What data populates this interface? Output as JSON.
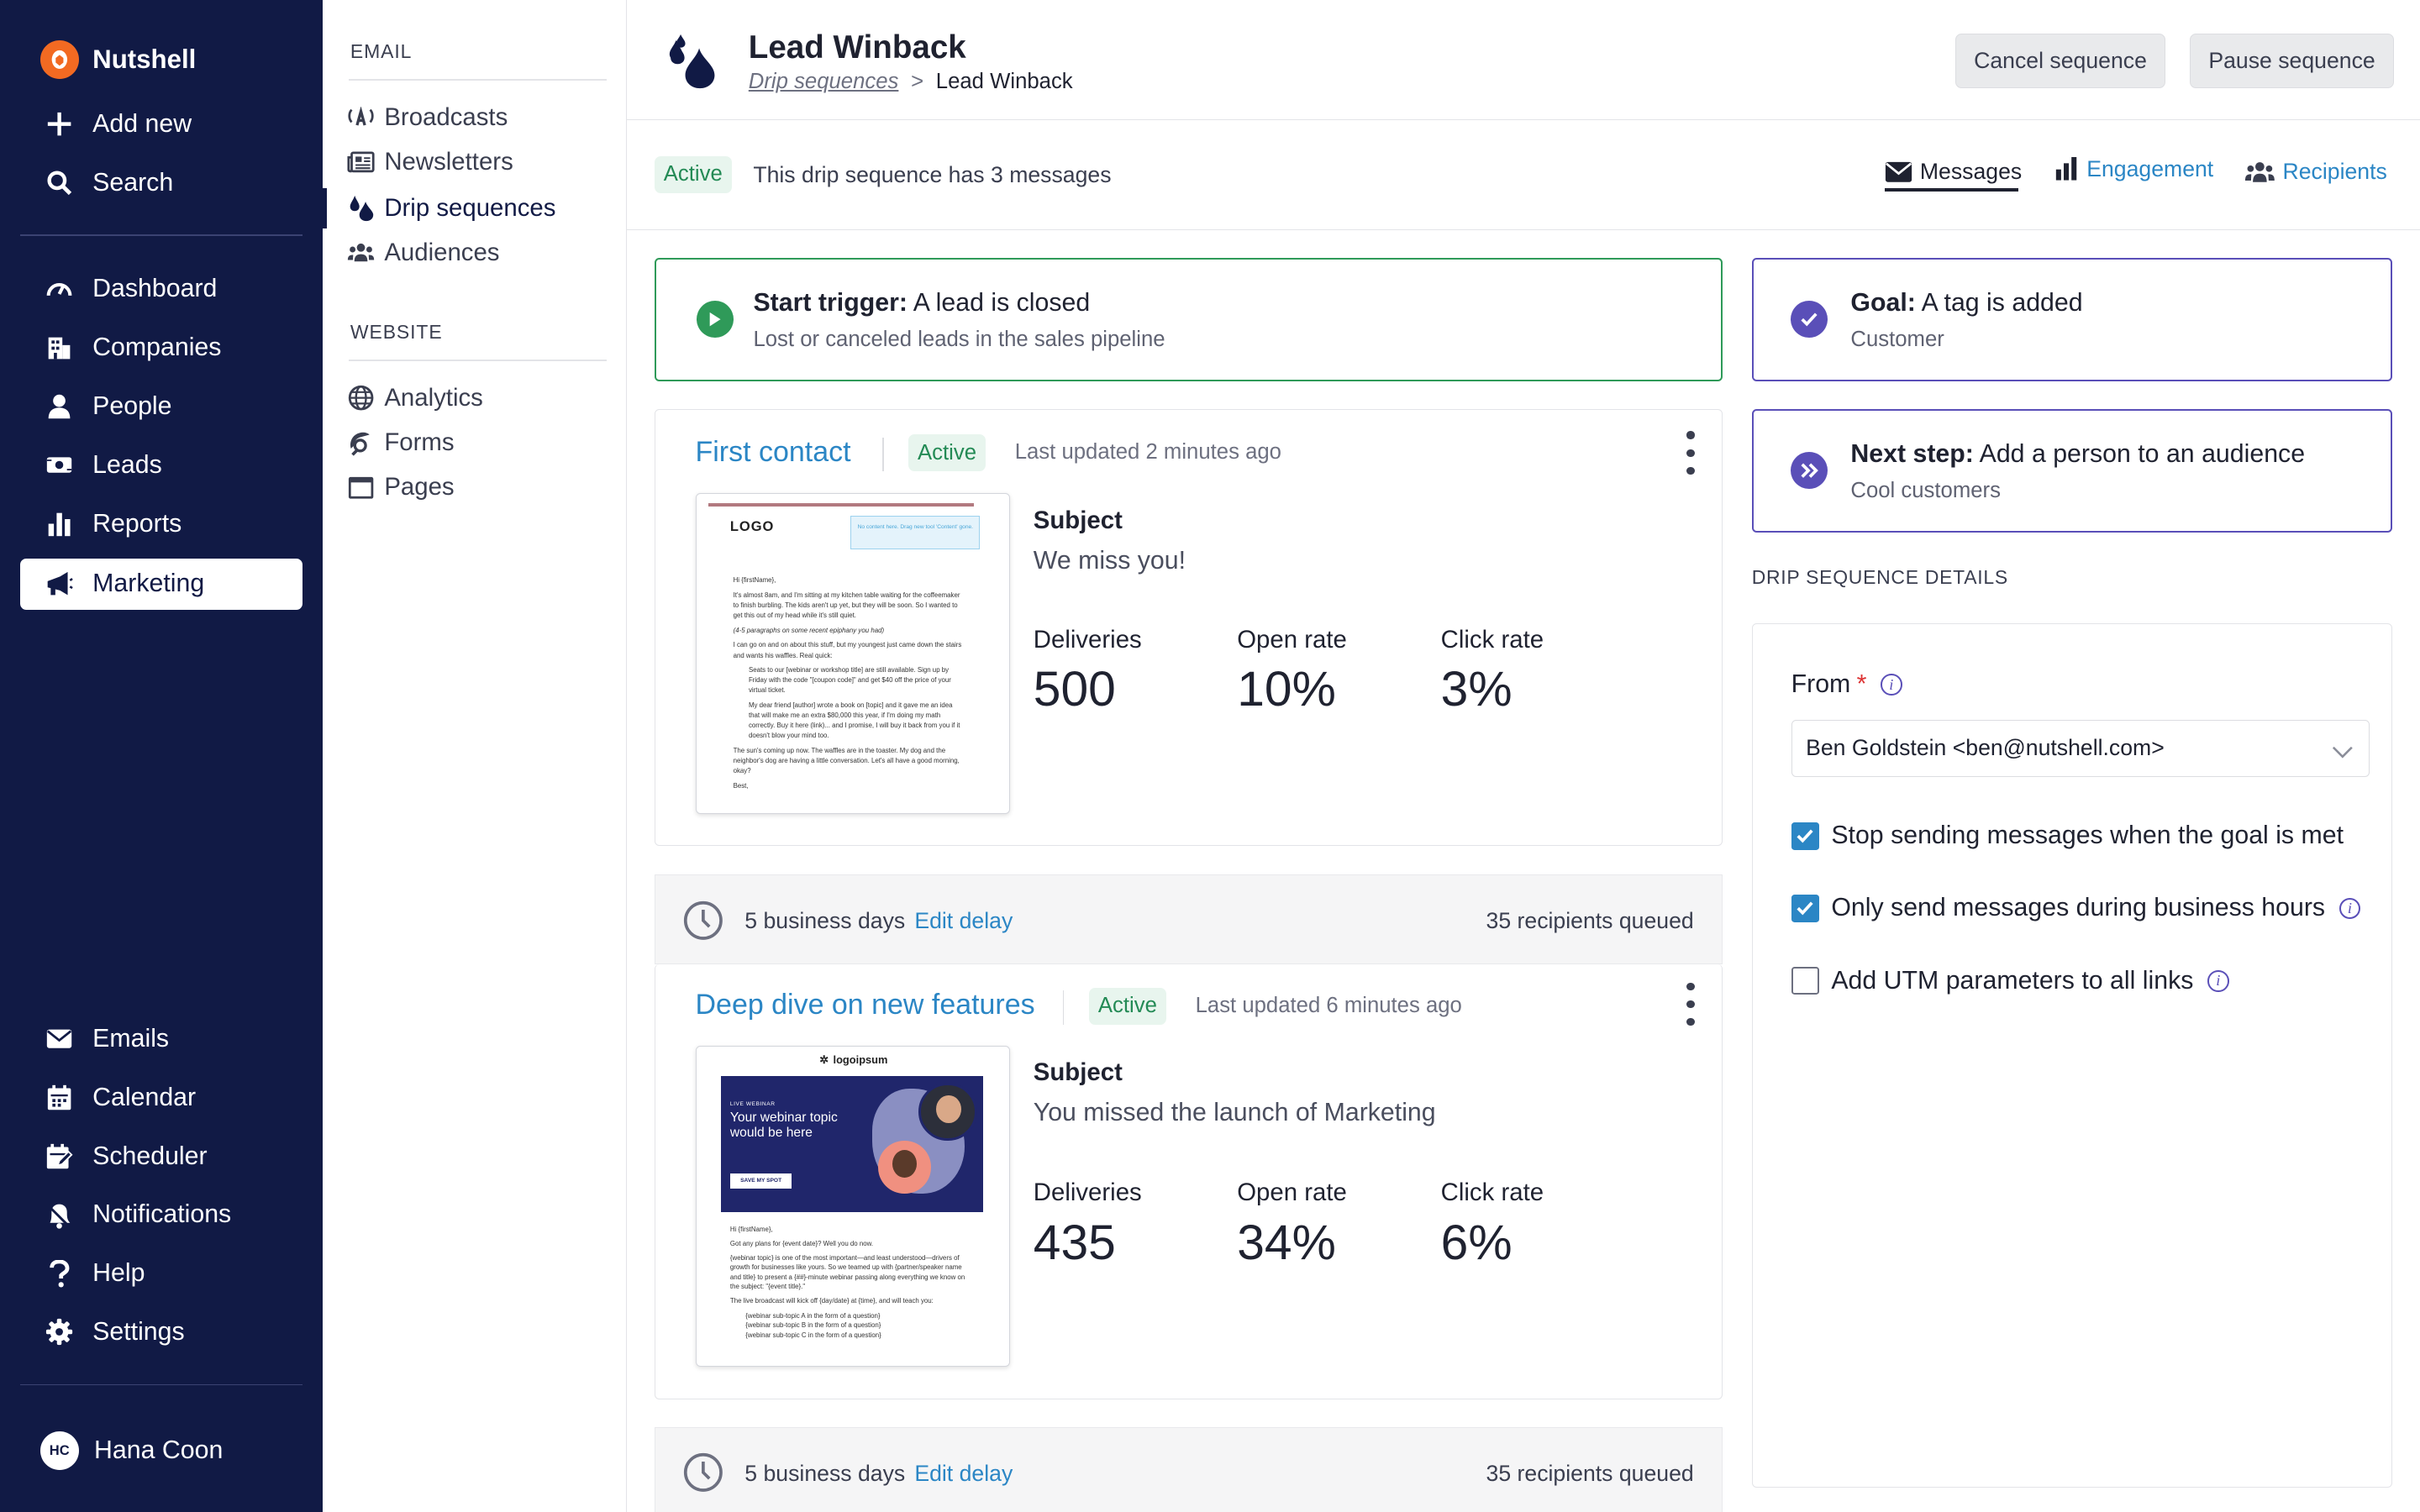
{
  "app": {
    "name": "Nutshell",
    "user_initials": "HC",
    "user_name": "Hana Coon"
  },
  "sidebar": {
    "top_items": [
      {
        "label": "Add new",
        "icon": "plus-icon"
      },
      {
        "label": "Search",
        "icon": "search-icon"
      }
    ],
    "main_items": [
      {
        "label": "Dashboard",
        "icon": "gauge-icon"
      },
      {
        "label": "Companies",
        "icon": "building-icon"
      },
      {
        "label": "People",
        "icon": "person-icon"
      },
      {
        "label": "Leads",
        "icon": "money-icon"
      },
      {
        "label": "Reports",
        "icon": "bar-chart-icon"
      },
      {
        "label": "Marketing",
        "icon": "megaphone-icon",
        "active": true
      }
    ],
    "bottom_items": [
      {
        "label": "Emails",
        "icon": "envelope-icon"
      },
      {
        "label": "Calendar",
        "icon": "calendar-icon"
      },
      {
        "label": "Scheduler",
        "icon": "calendar-edit-icon"
      },
      {
        "label": "Notifications",
        "icon": "bell-icon"
      },
      {
        "label": "Help",
        "icon": "question-icon"
      },
      {
        "label": "Settings",
        "icon": "gear-icon"
      }
    ]
  },
  "subnav": {
    "email_heading": "EMAIL",
    "email_items": [
      {
        "label": "Broadcasts",
        "icon": "broadcast-icon"
      },
      {
        "label": "Newsletters",
        "icon": "newspaper-icon"
      },
      {
        "label": "Drip sequences",
        "icon": "droplets-icon",
        "active": true
      },
      {
        "label": "Audiences",
        "icon": "users-icon"
      }
    ],
    "website_heading": "WEBSITE",
    "website_items": [
      {
        "label": "Analytics",
        "icon": "globe-icon"
      },
      {
        "label": "Forms",
        "icon": "form-icon"
      },
      {
        "label": "Pages",
        "icon": "browser-icon"
      }
    ]
  },
  "header": {
    "title": "Lead Winback",
    "breadcrumb_parent": "Drip sequences",
    "breadcrumb_sep": ">",
    "breadcrumb_current": "Lead Winback",
    "cancel_label": "Cancel sequence",
    "pause_label": "Pause sequence"
  },
  "status": {
    "badge": "Active",
    "text": "This drip sequence has 3 messages",
    "tabs": [
      {
        "label": "Messages",
        "icon": "envelope-icon",
        "active": true
      },
      {
        "label": "Engagement",
        "icon": "bar-chart-icon"
      },
      {
        "label": "Recipients",
        "icon": "users-icon"
      }
    ]
  },
  "trigger": {
    "title_bold": "Start trigger:",
    "title_rest": " A lead is closed",
    "subtitle": "Lost or canceled leads in the sales pipeline"
  },
  "goal": {
    "title_bold": "Goal:",
    "title_rest": " A tag is added",
    "subtitle": "Customer"
  },
  "next_step": {
    "title_bold": "Next step:",
    "title_rest": " Add a person to an audience",
    "subtitle": "Cool customers"
  },
  "messages": [
    {
      "title": "First contact",
      "status": "Active",
      "updated": "Last updated 2 minutes ago",
      "subject_label": "Subject",
      "subject": "We miss you!",
      "deliveries_label": "Deliveries",
      "deliveries": "500",
      "open_rate_label": "Open rate",
      "open_rate": "10%",
      "click_rate_label": "Click rate",
      "click_rate": "3%",
      "preview": {
        "logo": "LOGO",
        "banner": "No content here. Drag new tool 'Content' gone.",
        "greeting": "Hi {firstName},",
        "body1": "It's almost 8am, and I'm sitting at my kitchen table waiting for the coffeemaker to finish burbling. The kids aren't up yet, but they will be soon. So I wanted to get this out of my head while it's still quiet.",
        "body2": "(4-5 paragraphs on some recent epiphany you had)",
        "body3": "I can go on and on about this stuff, but my youngest just came down the stairs and wants his waffles. Real quick:",
        "bullet1": "Seats to our [webinar or workshop title] are still available. Sign up by Friday with the code \"[coupon code]\" and get $40 off the price of your virtual ticket.",
        "bullet2": "My dear friend [author] wrote a book on [topic] and it gave me an idea that will make me an extra $80,000 this year, if I'm doing my math correctly. Buy it here (link)... and I promise, I will buy it back from you if it doesn't blow your mind too.",
        "body4": "The sun's coming up now. The waffles are in the toaster. My dog and the neighbor's dog are having a little conversation. Let's all have a good morning, okay?",
        "signoff": "Best,"
      }
    },
    {
      "title": "Deep dive on new features",
      "status": "Active",
      "updated": "Last updated 6 minutes ago",
      "subject_label": "Subject",
      "subject": "You missed the launch of Marketing",
      "deliveries_label": "Deliveries",
      "deliveries": "435",
      "open_rate_label": "Open rate",
      "open_rate": "34%",
      "click_rate_label": "Click rate",
      "click_rate": "6%",
      "preview": {
        "logo": "logoipsum",
        "eyebrow": "LIVE WEBINAR",
        "headline": "Your webinar topic would be here",
        "cta": "SAVE MY SPOT",
        "greeting": "Hi {firstName},",
        "line1": "Got any plans for {event date}? Well you do now.",
        "line2": "{webinar topic} is one of the most important—and least understood—drivers of growth for businesses like yours. So we teamed up with {partner/speaker name and title} to present a {##}-minute webinar passing along everything we know on the subject: \"{event title}.\"",
        "line3": "The live broadcast will kick off {day/date} at {time}, and will teach you:",
        "bullets": [
          "{webinar sub-topic A in the form of a question}",
          "{webinar sub-topic B in the form of a question}",
          "{webinar sub-topic C in the form of a question}"
        ]
      }
    }
  ],
  "delays": [
    {
      "days": "5 business days",
      "edit": "Edit delay",
      "queued": "35 recipients queued"
    },
    {
      "days": "5 business days",
      "edit": "Edit delay",
      "queued": "35 recipients queued"
    }
  ],
  "details": {
    "heading": "DRIP SEQUENCE  DETAILS",
    "from_label": "From",
    "required_mark": "*",
    "from_value": "Ben Goldstein <ben@nutshell.com>",
    "options": [
      {
        "label": "Stop sending messages when the goal is met",
        "checked": true
      },
      {
        "label": "Only send messages during business hours",
        "checked": true
      },
      {
        "label": "Add UTM parameters to all links",
        "checked": false
      }
    ]
  },
  "colors": {
    "sidebar_bg": "#111a45",
    "brand_orange": "#f26a22",
    "link_blue": "#2b86c5",
    "active_green": "#238a55",
    "goal_purple": "#5a4fb8"
  }
}
